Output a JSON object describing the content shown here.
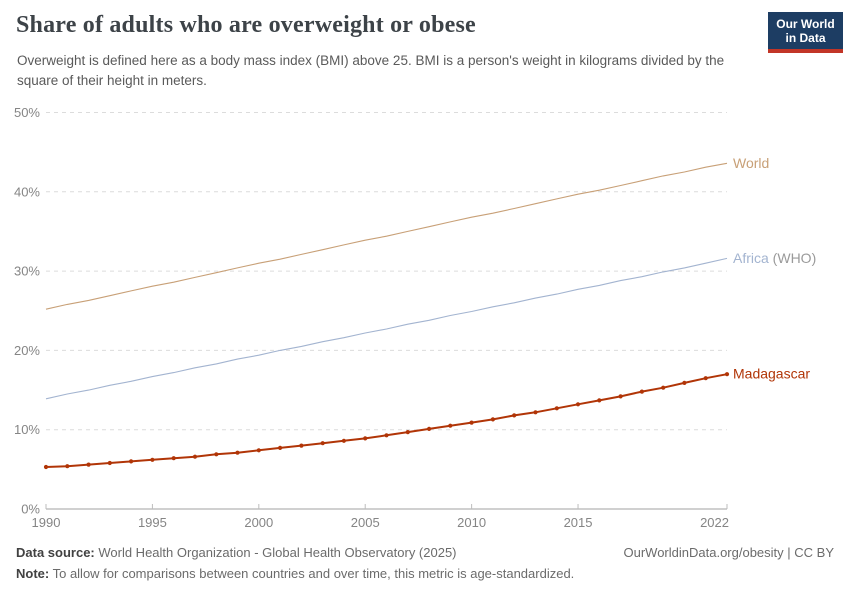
{
  "header": {
    "title": "Share of adults who are overweight or obese",
    "subtitle": "Overweight is defined here as a body mass index (BMI) above 25. BMI is a person's weight in kilograms divided by the square of their height in meters.",
    "logo": {
      "line1": "Our World",
      "line2": "in Data",
      "bg_color": "#1d3d63",
      "bar_color": "#c23527"
    }
  },
  "footer": {
    "source_label": "Data source:",
    "source_text": " World Health Organization - Global Health Observatory (2025)",
    "credit": "OurWorldinData.org/obesity | CC BY",
    "note_label": "Note:",
    "note_text": " To allow for comparisons between countries and over time, this metric is age-standardized."
  },
  "chart_data": {
    "type": "line",
    "title": "Share of adults who are overweight or obese",
    "subtitle": "Overweight is defined here as a body mass index (BMI) above 25. BMI is a person's weight in kilograms divided by the square of their height in meters.",
    "xlabel": "",
    "ylabel": "",
    "ylim": [
      0,
      50
    ],
    "xlim": [
      1990,
      2022
    ],
    "grid": "horizontal-dashed",
    "legend_position": "right-of-line-end",
    "x": [
      1990,
      1991,
      1992,
      1993,
      1994,
      1995,
      1996,
      1997,
      1998,
      1999,
      2000,
      2001,
      2002,
      2003,
      2004,
      2005,
      2006,
      2007,
      2008,
      2009,
      2010,
      2011,
      2012,
      2013,
      2014,
      2015,
      2016,
      2017,
      2018,
      2019,
      2020,
      2021,
      2022
    ],
    "yticks": [
      {
        "value": 0,
        "label": "0%"
      },
      {
        "value": 10,
        "label": "10%"
      },
      {
        "value": 20,
        "label": "20%"
      },
      {
        "value": 30,
        "label": "30%"
      },
      {
        "value": 40,
        "label": "40%"
      },
      {
        "value": 50,
        "label": "50%"
      }
    ],
    "xticks": [
      {
        "value": 1990,
        "label": "1990"
      },
      {
        "value": 1995,
        "label": "1995"
      },
      {
        "value": 2000,
        "label": "2000"
      },
      {
        "value": 2005,
        "label": "2005"
      },
      {
        "value": 2010,
        "label": "2010"
      },
      {
        "value": 2015,
        "label": "2015"
      },
      {
        "value": 2022,
        "label": "2022"
      }
    ],
    "series": [
      {
        "name": "World",
        "label": "World",
        "label_suffix": "",
        "color": "#c8a077",
        "markers": false,
        "line_width": 1.1,
        "values": [
          25.2,
          25.8,
          26.3,
          26.9,
          27.5,
          28.1,
          28.6,
          29.2,
          29.8,
          30.4,
          31.0,
          31.5,
          32.1,
          32.7,
          33.3,
          33.9,
          34.4,
          35.0,
          35.6,
          36.2,
          36.8,
          37.3,
          37.9,
          38.5,
          39.1,
          39.7,
          40.2,
          40.8,
          41.4,
          42.0,
          42.5,
          43.1,
          43.6
        ]
      },
      {
        "name": "Africa (WHO)",
        "label": "Africa",
        "label_suffix": " (WHO)",
        "suffix_color": "#9a9a9a",
        "color": "#a3b4d0",
        "markers": false,
        "line_width": 1.1,
        "values": [
          13.9,
          14.5,
          15.0,
          15.6,
          16.1,
          16.7,
          17.2,
          17.8,
          18.3,
          18.9,
          19.4,
          20.0,
          20.5,
          21.1,
          21.6,
          22.2,
          22.7,
          23.3,
          23.8,
          24.4,
          24.9,
          25.5,
          26.0,
          26.6,
          27.1,
          27.7,
          28.2,
          28.8,
          29.3,
          29.9,
          30.4,
          31.0,
          31.6
        ]
      },
      {
        "name": "Madagascar",
        "label": "Madagascar",
        "label_suffix": "",
        "color": "#b13507",
        "markers": true,
        "line_width": 2,
        "values": [
          5.3,
          5.4,
          5.6,
          5.8,
          6.0,
          6.2,
          6.4,
          6.6,
          6.9,
          7.1,
          7.4,
          7.7,
          8.0,
          8.3,
          8.6,
          8.9,
          9.3,
          9.7,
          10.1,
          10.5,
          10.9,
          11.3,
          11.8,
          12.2,
          12.7,
          13.2,
          13.7,
          14.2,
          14.8,
          15.3,
          15.9,
          16.5,
          17.0
        ]
      }
    ],
    "axis_color": "#a0a0a0",
    "gridline_color": "#dcdcdc",
    "tick_label_color": "#858585"
  }
}
